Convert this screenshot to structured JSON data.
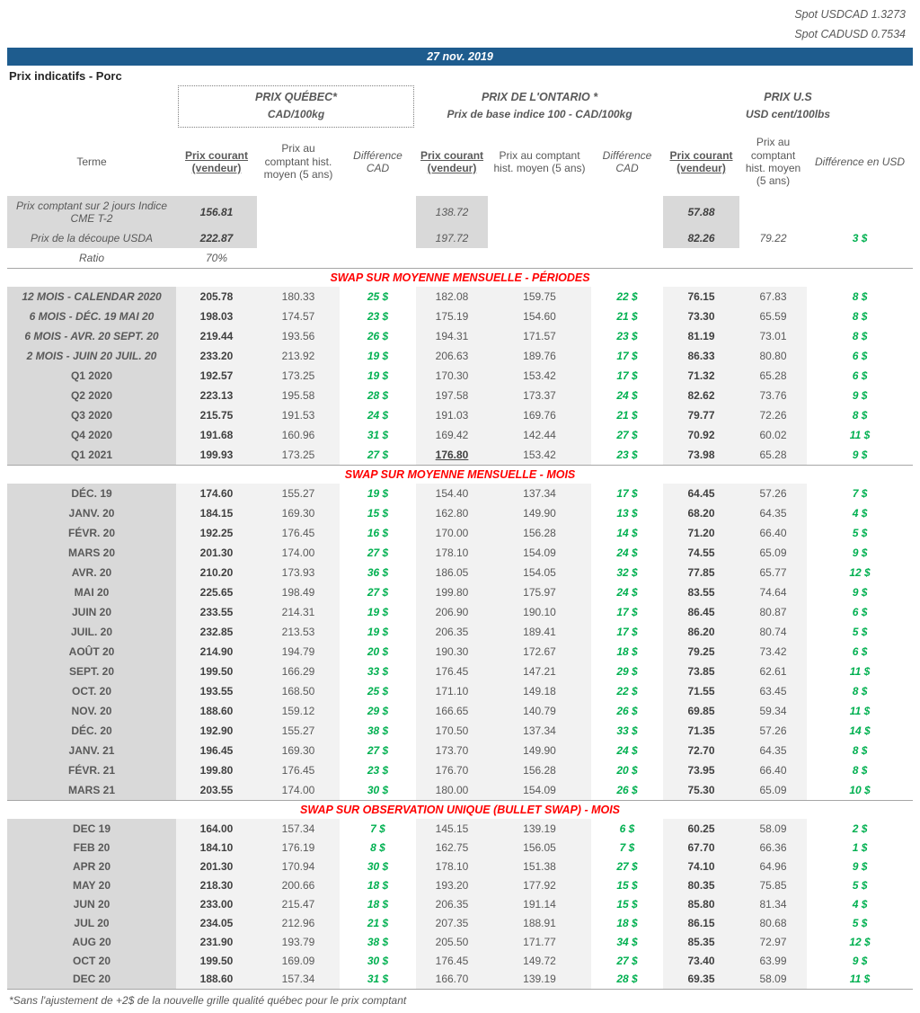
{
  "meta": {
    "spot_usdcad": "Spot USDCAD 1.3273",
    "spot_cadusd": "Spot CADUSD 0.7534",
    "date": "27 nov. 2019",
    "title": "Prix indicatifs - Porc",
    "footnote": "*Sans l'ajustement de +2$ de la nouvelle grille qualité québec pour le prix comptant"
  },
  "colors": {
    "header_blue": "#1e5c8e",
    "section_red": "#ff0000",
    "difference_green": "#00b050",
    "label_gray": "#d9d9d9",
    "band_gray": "#f2f2f2"
  },
  "groups": {
    "quebec": {
      "title": "PRIX QUÉBEC*",
      "subtitle": "CAD/100kg"
    },
    "ontario": {
      "title": "PRIX DE L'ONTARIO *",
      "subtitle": "Prix de base indice 100 - CAD/100kg"
    },
    "us": {
      "title": "PRIX U.S",
      "subtitle": "USD cent/100lbs"
    }
  },
  "columns": {
    "terme": "Terme",
    "courant": "Prix courant (vendeur)",
    "comptant": "Prix au comptant hist. moyen (5 ans)",
    "diff_cad": "Différence CAD",
    "diff_usd": "Différence en USD"
  },
  "spot_rows": [
    {
      "label": "Prix comptant sur 2 jours Indice CME T-2",
      "qc": "156.81",
      "on": "138.72",
      "us": "57.88",
      "us_hist": "",
      "us_diff": ""
    },
    {
      "label": "Prix de la découpe USDA",
      "qc": "222.87",
      "on": "197.72",
      "us": "82.26",
      "us_hist": "79.22",
      "us_diff": "3 $"
    },
    {
      "label": "Ratio",
      "qc": "70%",
      "on": "",
      "us": "",
      "us_hist": "",
      "us_diff": ""
    }
  ],
  "sections": [
    {
      "title": "SWAP SUR MOYENNE MENSUELLE - PÉRIODES",
      "rows": [
        {
          "terme": "12 MOIS - CALENDAR 2020",
          "values": [
            "205.78",
            "180.33",
            "25 $",
            "182.08",
            "159.75",
            "22 $",
            "76.15",
            "67.83",
            "8 $"
          ]
        },
        {
          "terme": "6 MOIS -  DÉC. 19 MAI 20",
          "values": [
            "198.03",
            "174.57",
            "23 $",
            "175.19",
            "154.60",
            "21 $",
            "73.30",
            "65.59",
            "8 $"
          ]
        },
        {
          "terme": "6 MOIS -  AVR. 20 SEPT. 20",
          "values": [
            "219.44",
            "193.56",
            "26 $",
            "194.31",
            "171.57",
            "23 $",
            "81.19",
            "73.01",
            "8 $"
          ]
        },
        {
          "terme": "2 MOIS -  JUIN 20  JUIL. 20",
          "values": [
            "233.20",
            "213.92",
            "19 $",
            "206.63",
            "189.76",
            "17 $",
            "86.33",
            "80.80",
            "6 $"
          ]
        },
        {
          "terme": "Q1 2020",
          "values": [
            "192.57",
            "173.25",
            "19 $",
            "170.30",
            "153.42",
            "17 $",
            "71.32",
            "65.28",
            "6 $"
          ]
        },
        {
          "terme": "Q2 2020",
          "values": [
            "223.13",
            "195.58",
            "28 $",
            "197.58",
            "173.37",
            "24 $",
            "82.62",
            "73.76",
            "9 $"
          ]
        },
        {
          "terme": "Q3 2020",
          "values": [
            "215.75",
            "191.53",
            "24 $",
            "191.03",
            "169.76",
            "21 $",
            "79.77",
            "72.26",
            "8 $"
          ]
        },
        {
          "terme": "Q4 2020",
          "values": [
            "191.68",
            "160.96",
            "31 $",
            "169.42",
            "142.44",
            "27 $",
            "70.92",
            "60.02",
            "11 $"
          ]
        },
        {
          "terme": "Q1 2021",
          "values": [
            "199.93",
            "173.25",
            "27 $",
            "176.80",
            "153.42",
            "23 $",
            "73.98",
            "65.28",
            "9 $"
          ],
          "on_emphasis": true
        }
      ]
    },
    {
      "title": "SWAP SUR MOYENNE MENSUELLE - MOIS",
      "rows": [
        {
          "terme": "DÉC. 19",
          "values": [
            "174.60",
            "155.27",
            "19 $",
            "154.40",
            "137.34",
            "17 $",
            "64.45",
            "57.26",
            "7 $"
          ]
        },
        {
          "terme": "JANV. 20",
          "values": [
            "184.15",
            "169.30",
            "15 $",
            "162.80",
            "149.90",
            "13 $",
            "68.20",
            "64.35",
            "4 $"
          ]
        },
        {
          "terme": "FÉVR. 20",
          "values": [
            "192.25",
            "176.45",
            "16 $",
            "170.00",
            "156.28",
            "14 $",
            "71.20",
            "66.40",
            "5 $"
          ]
        },
        {
          "terme": "MARS 20",
          "values": [
            "201.30",
            "174.00",
            "27 $",
            "178.10",
            "154.09",
            "24 $",
            "74.55",
            "65.09",
            "9 $"
          ]
        },
        {
          "terme": "AVR. 20",
          "values": [
            "210.20",
            "173.93",
            "36 $",
            "186.05",
            "154.05",
            "32 $",
            "77.85",
            "65.77",
            "12 $"
          ]
        },
        {
          "terme": "MAI 20",
          "values": [
            "225.65",
            "198.49",
            "27 $",
            "199.80",
            "175.97",
            "24 $",
            "83.55",
            "74.64",
            "9 $"
          ]
        },
        {
          "terme": "JUIN 20",
          "values": [
            "233.55",
            "214.31",
            "19 $",
            "206.90",
            "190.10",
            "17 $",
            "86.45",
            "80.87",
            "6 $"
          ]
        },
        {
          "terme": "JUIL. 20",
          "values": [
            "232.85",
            "213.53",
            "19 $",
            "206.35",
            "189.41",
            "17 $",
            "86.20",
            "80.74",
            "5 $"
          ]
        },
        {
          "terme": "AOÛT 20",
          "values": [
            "214.90",
            "194.79",
            "20 $",
            "190.30",
            "172.67",
            "18 $",
            "79.25",
            "73.42",
            "6 $"
          ]
        },
        {
          "terme": "SEPT. 20",
          "values": [
            "199.50",
            "166.29",
            "33 $",
            "176.45",
            "147.21",
            "29 $",
            "73.85",
            "62.61",
            "11 $"
          ]
        },
        {
          "terme": "OCT. 20",
          "values": [
            "193.55",
            "168.50",
            "25 $",
            "171.10",
            "149.18",
            "22 $",
            "71.55",
            "63.45",
            "8 $"
          ]
        },
        {
          "terme": "NOV. 20",
          "values": [
            "188.60",
            "159.12",
            "29 $",
            "166.65",
            "140.79",
            "26 $",
            "69.85",
            "59.34",
            "11 $"
          ]
        },
        {
          "terme": "DÉC. 20",
          "values": [
            "192.90",
            "155.27",
            "38 $",
            "170.50",
            "137.34",
            "33 $",
            "71.35",
            "57.26",
            "14 $"
          ]
        },
        {
          "terme": "JANV. 21",
          "values": [
            "196.45",
            "169.30",
            "27 $",
            "173.70",
            "149.90",
            "24 $",
            "72.70",
            "64.35",
            "8 $"
          ]
        },
        {
          "terme": "FÉVR. 21",
          "values": [
            "199.80",
            "176.45",
            "23 $",
            "176.70",
            "156.28",
            "20 $",
            "73.95",
            "66.40",
            "8 $"
          ]
        },
        {
          "terme": "MARS 21",
          "values": [
            "203.55",
            "174.00",
            "30 $",
            "180.00",
            "154.09",
            "26 $",
            "75.30",
            "65.09",
            "10 $"
          ]
        }
      ]
    },
    {
      "title": "SWAP SUR OBSERVATION UNIQUE (BULLET SWAP) - MOIS",
      "rows": [
        {
          "terme": "DEC 19",
          "values": [
            "164.00",
            "157.34",
            "7 $",
            "145.15",
            "139.19",
            "6 $",
            "60.25",
            "58.09",
            "2 $"
          ]
        },
        {
          "terme": "FEB 20",
          "values": [
            "184.10",
            "176.19",
            "8 $",
            "162.75",
            "156.05",
            "7 $",
            "67.70",
            "66.36",
            "1 $"
          ]
        },
        {
          "terme": "APR 20",
          "values": [
            "201.30",
            "170.94",
            "30 $",
            "178.10",
            "151.38",
            "27 $",
            "74.10",
            "64.96",
            "9 $"
          ]
        },
        {
          "terme": "MAY 20",
          "values": [
            "218.30",
            "200.66",
            "18 $",
            "193.20",
            "177.92",
            "15 $",
            "80.35",
            "75.85",
            "5 $"
          ]
        },
        {
          "terme": "JUN 20",
          "values": [
            "233.00",
            "215.47",
            "18 $",
            "206.35",
            "191.14",
            "15 $",
            "85.80",
            "81.34",
            "4 $"
          ]
        },
        {
          "terme": "JUL 20",
          "values": [
            "234.05",
            "212.96",
            "21 $",
            "207.35",
            "188.91",
            "18 $",
            "86.15",
            "80.68",
            "5 $"
          ]
        },
        {
          "terme": "AUG 20",
          "values": [
            "231.90",
            "193.79",
            "38 $",
            "205.50",
            "171.77",
            "34 $",
            "85.35",
            "72.97",
            "12 $"
          ]
        },
        {
          "terme": "OCT 20",
          "values": [
            "199.50",
            "169.09",
            "30 $",
            "176.45",
            "149.72",
            "27 $",
            "73.40",
            "63.99",
            "9 $"
          ]
        },
        {
          "terme": "DEC 20",
          "values": [
            "188.60",
            "157.34",
            "31 $",
            "166.70",
            "139.19",
            "28 $",
            "69.35",
            "58.09",
            "11 $"
          ]
        }
      ]
    }
  ]
}
